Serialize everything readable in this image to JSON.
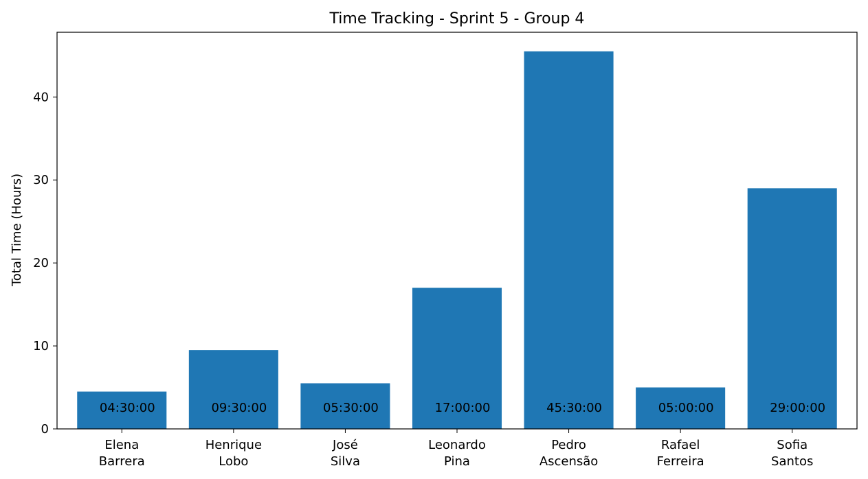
{
  "chart_data": {
    "type": "bar",
    "title": "Time Tracking - Sprint 5 - Group 4",
    "xlabel": "",
    "ylabel": "Total Time (Hours)",
    "categories": [
      [
        "Elena",
        "Barrera"
      ],
      [
        "Henrique",
        "Lobo"
      ],
      [
        "José",
        "Silva"
      ],
      [
        "Leonardo",
        "Pina"
      ],
      [
        "Pedro",
        "Ascensão"
      ],
      [
        "Rafael",
        "Ferreira"
      ],
      [
        "Sofia",
        "Santos"
      ]
    ],
    "values": [
      4.5,
      9.5,
      5.5,
      17.0,
      45.5,
      5.0,
      29.0
    ],
    "data_labels": [
      "04:30:00",
      "09:30:00",
      "05:30:00",
      "17:00:00",
      "45:30:00",
      "05:00:00",
      "29:00:00"
    ],
    "ylim": [
      0,
      47.8
    ],
    "yticks": [
      0,
      10,
      20,
      30,
      40
    ],
    "grid": false,
    "bar_color": "#1f77b4"
  }
}
